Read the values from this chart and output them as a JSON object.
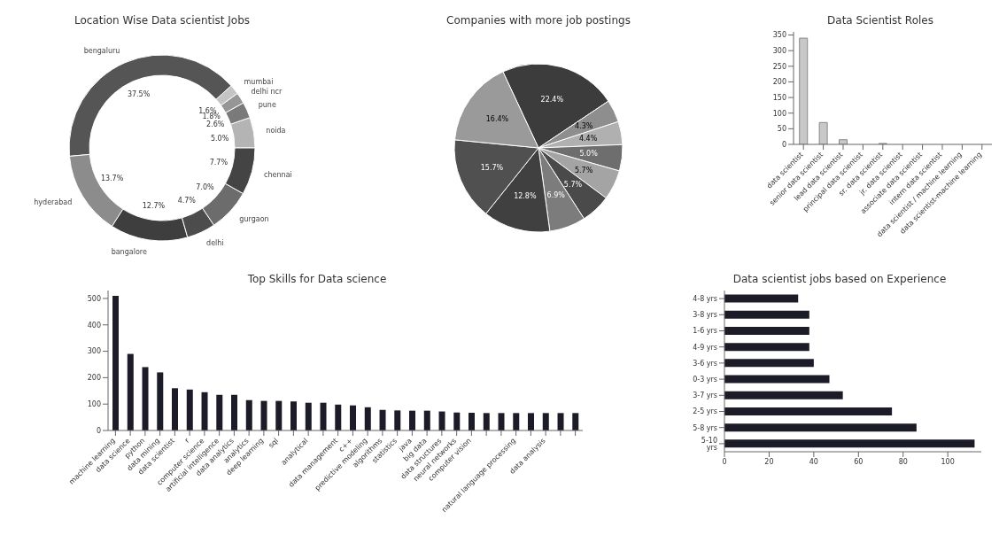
{
  "chart_data": [
    {
      "type": "donut",
      "title": "Location Wise Data scientist Jobs",
      "categories": [
        "noida",
        "pune",
        "delhi ncr",
        "mumbai",
        "bengaluru",
        "hyderabad",
        "bangalore",
        "delhi",
        "gurgaon",
        "chennai"
      ],
      "values": [
        5.0,
        2.6,
        1.8,
        1.6,
        37.5,
        13.7,
        12.7,
        4.7,
        7.0,
        7.7
      ],
      "value_labels": [
        "5.0%",
        "2.6%",
        "1.8%",
        "1.6%",
        "37.5%",
        "13.7%",
        "12.7%",
        "4.7%",
        "7.0%",
        "7.7%"
      ],
      "colors": [
        "#b4b4b4",
        "#7a7a7a",
        "#969696",
        "#c4c4c4",
        "#555555",
        "#8c8c8c",
        "#3e3e3e",
        "#4c4c4c",
        "#6c6c6c",
        "#444444"
      ]
    },
    {
      "type": "pie",
      "title": "Companies with more job postings",
      "categories": [
        null,
        null,
        null,
        null,
        null,
        null,
        null,
        null,
        null,
        null
      ],
      "values": [
        22.4,
        4.3,
        4.4,
        5.0,
        5.7,
        5.7,
        6.9,
        12.8,
        15.7,
        16.4
      ],
      "value_labels": [
        "22.4%",
        "4.3%",
        "4.4%",
        "5.0%",
        "5.7%",
        "5.7%",
        "6.9%",
        "12.8%",
        "15.7%",
        "16.4%"
      ],
      "colors": [
        "#3c3c3c",
        "#8e8e8e",
        "#b0b0b0",
        "#6e6e6e",
        "#a4a4a4",
        "#4a4a4a",
        "#7c7c7c",
        "#404040",
        "#505050",
        "#9a9a9a"
      ]
    },
    {
      "type": "bar",
      "title": "Data Scientist Roles",
      "categories": [
        "data scientist",
        "senior data scientist",
        "lead data scientist",
        "principal data scientist",
        "sr. data scientist",
        "jr. data scientist",
        "associate data scientist",
        "intern data scientist",
        "data scientist / machine learning",
        "data scientist-machine learning"
      ],
      "values": [
        340,
        70,
        15,
        null,
        3,
        null,
        null,
        null,
        null,
        null
      ],
      "color": "#c8c8c8",
      "ylim": [
        0,
        360
      ],
      "yticks": [
        0,
        50,
        100,
        150,
        200,
        250,
        300,
        350
      ]
    },
    {
      "type": "bar",
      "title": "Top Skills for Data science",
      "categories": [
        "machine learning",
        "data science",
        "python",
        "data mining",
        "data scientist",
        "r",
        "computer science",
        "artificial intelligence",
        "data analytics",
        "analytics",
        "deep learning",
        "sql",
        null,
        "analytical",
        null,
        "data management",
        "c++",
        "predictive modeling",
        "algorithms",
        "statistics",
        "java",
        "big data",
        "data structures",
        "neural networks",
        "computer vision",
        null,
        null,
        "natural language processing",
        null,
        "data analysis",
        null,
        null
      ],
      "values": [
        510,
        290,
        240,
        220,
        160,
        155,
        145,
        135,
        135,
        115,
        112,
        112,
        110,
        105,
        105,
        98,
        95,
        88,
        78,
        76,
        75,
        75,
        72,
        68,
        67,
        66,
        66,
        66,
        66,
        66,
        66,
        66
      ],
      "color": "#1c1c28",
      "ylim": [
        0,
        530
      ],
      "yticks": [
        0,
        100,
        200,
        300,
        400,
        500
      ]
    },
    {
      "type": "bar",
      "orientation": "horizontal",
      "title": "Data scientist jobs based on Experience",
      "categories": [
        "4-8 yrs",
        "3-8 yrs",
        "1-6 yrs",
        "4-9 yrs",
        "3-6 yrs",
        "0-3 yrs",
        "3-7 yrs",
        "2-5 yrs",
        "5-8 yrs",
        "5-10 yrs"
      ],
      "values": [
        33,
        38,
        38,
        38,
        40,
        47,
        53,
        75,
        86,
        112
      ],
      "color": "#1c1c28",
      "xlim": [
        0,
        115
      ],
      "xticks": [
        0,
        20,
        40,
        60,
        80,
        100
      ]
    }
  ]
}
